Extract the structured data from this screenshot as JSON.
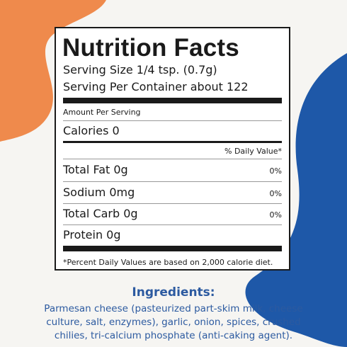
{
  "label": {
    "title": "Nutrition Facts",
    "serving_size": "Serving Size 1/4 tsp. (0.7g)",
    "servings_per_container": "Serving Per Container about 122",
    "amount_per_serving": "Amount Per Serving",
    "calories": "Calories 0",
    "daily_value_header": "% Daily Value*",
    "nutrients": [
      {
        "name": "Total Fat 0g",
        "daily_value": "0%"
      },
      {
        "name": "Sodium 0mg",
        "daily_value": "0%"
      },
      {
        "name": "Total Carb 0g",
        "daily_value": "0%"
      },
      {
        "name": "Protein 0g"
      }
    ],
    "footnote": "*Percent Daily Values are based on 2,000 calorie diet."
  },
  "ingredients": {
    "title": "Ingredients:",
    "lines": [
      "Parmesan cheese (pasteurized part-skim milk, cheese",
      "culture, salt, enzymes), garlic, onion, spices, crushed",
      "chilies, tri-calcium phosphate (anti-caking agent)."
    ]
  }
}
